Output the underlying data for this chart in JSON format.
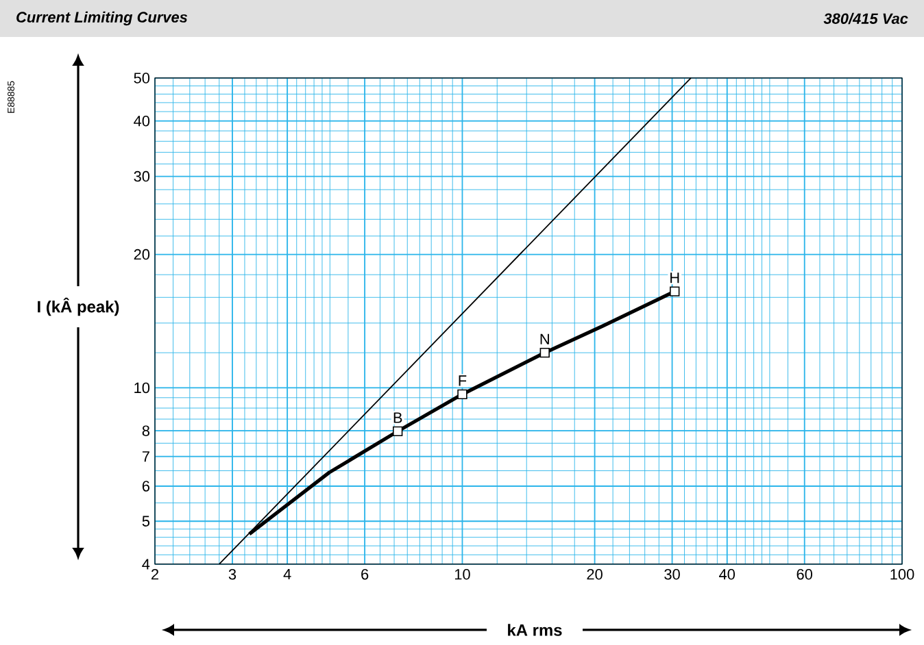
{
  "chart_data": {
    "type": "line",
    "title": "Current Limiting Curves",
    "subtitle": "380/415 Vac",
    "xlabel": "kA rms",
    "ylabel": "I (kÂ peak)",
    "log": "xy",
    "xlim": [
      2,
      100
    ],
    "ylim": [
      4,
      50
    ],
    "xticks": [
      2,
      3,
      4,
      6,
      10,
      20,
      30,
      40,
      60,
      100
    ],
    "yticks": [
      4,
      5,
      6,
      7,
      8,
      10,
      20,
      30,
      40,
      50
    ],
    "grid": true,
    "marker": "none",
    "line_style": "solid",
    "series": [
      {
        "color": "#000000",
        "x": [
          3.28,
          4.98,
          7.13,
          10.0,
          15.4,
          20.9,
          30.4
        ],
        "values": [
          4.68,
          6.44,
          7.98,
          9.67,
          12.0,
          13.8,
          16.5
        ]
      },
      {
        "color": "#000000",
        "x": [
          2.8,
          33.1
        ],
        "values": [
          4,
          50
        ]
      },
      {
        "type": "scatter",
        "marker": "square",
        "color": "#000000",
        "x": [
          7.13,
          10.0,
          15.4,
          30.4
        ],
        "values": [
          7.98,
          9.67,
          12.0,
          16.5
        ]
      }
    ],
    "annotations": [
      "E88885",
      {
        "text": "B",
        "x": 7.13,
        "y": 7.98
      },
      {
        "text": "F",
        "x": 10.0,
        "y": 9.67
      },
      {
        "text": "N",
        "x": 15.4,
        "y": 12.0
      },
      {
        "text": "H",
        "x": 30.4,
        "y": 16.5
      }
    ]
  }
}
